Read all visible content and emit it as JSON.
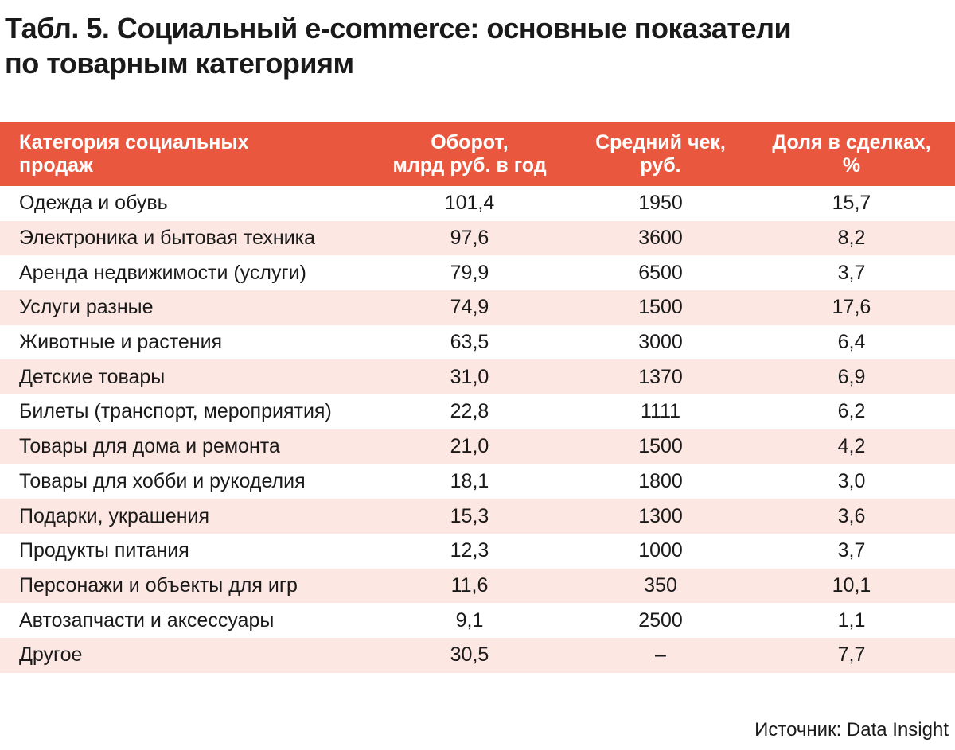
{
  "title_line1": "Табл. 5. Социальный e-commerce: основные показатели",
  "title_line2": "по товарным категориям",
  "headers": {
    "category_l1": "Категория социальных",
    "category_l2": "продаж",
    "turnover_l1": "Оборот,",
    "turnover_l2": "млрд руб. в год",
    "avg_check_l1": "Средний чек,",
    "avg_check_l2": "руб.",
    "share_l1": "Доля в сделках,",
    "share_l2": "%"
  },
  "rows": [
    {
      "category": "Одежда и обувь",
      "turnover": "101,4",
      "avg_check": "1950",
      "share": "15,7"
    },
    {
      "category": "Электроника и бытовая техника",
      "turnover": "97,6",
      "avg_check": "3600",
      "share": "8,2"
    },
    {
      "category": "Аренда недвижимости (услуги)",
      "turnover": "79,9",
      "avg_check": "6500",
      "share": "3,7"
    },
    {
      "category": "Услуги разные",
      "turnover": "74,9",
      "avg_check": "1500",
      "share": "17,6"
    },
    {
      "category": "Животные и растения",
      "turnover": "63,5",
      "avg_check": "3000",
      "share": "6,4"
    },
    {
      "category": "Детские товары",
      "turnover": "31,0",
      "avg_check": "1370",
      "share": "6,9"
    },
    {
      "category": "Билеты (транспорт, мероприятия)",
      "turnover": "22,8",
      "avg_check": "1111",
      "share": "6,2"
    },
    {
      "category": "Товары для дома и ремонта",
      "turnover": "21,0",
      "avg_check": "1500",
      "share": "4,2"
    },
    {
      "category": "Товары для хобби и рукоделия",
      "turnover": "18,1",
      "avg_check": "1800",
      "share": "3,0"
    },
    {
      "category": "Подарки, украшения",
      "turnover": "15,3",
      "avg_check": "1300",
      "share": "3,6"
    },
    {
      "category": "Продукты питания",
      "turnover": "12,3",
      "avg_check": "1000",
      "share": "3,7"
    },
    {
      "category": "Персонажи и объекты для игр",
      "turnover": "11,6",
      "avg_check": "350",
      "share": "10,1"
    },
    {
      "category": "Автозапчасти и аксессуары",
      "turnover": "9,1",
      "avg_check": "2500",
      "share": "1,1"
    },
    {
      "category": "Другое",
      "turnover": "30,5",
      "avg_check": "–",
      "share": "7,7"
    }
  ],
  "source": "Источник: Data Insight",
  "colors": {
    "header_bg": "#e9573f",
    "stripe_bg": "#fde7e2"
  }
}
